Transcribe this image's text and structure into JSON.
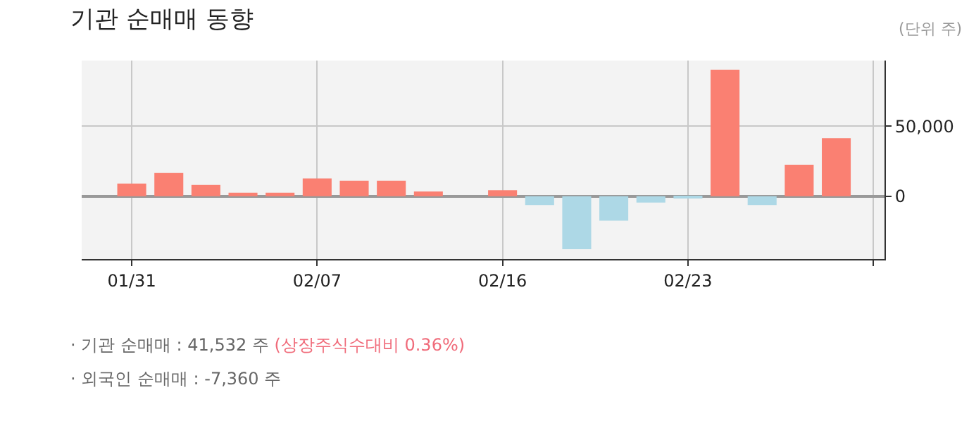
{
  "chart_data": {
    "type": "bar",
    "title": "기관 순매매 동향",
    "subtitle": "(단위 주)",
    "categories": [
      "01/31",
      null,
      null,
      null,
      null,
      "02/07",
      null,
      null,
      null,
      null,
      "02/16",
      null,
      null,
      null,
      null,
      "02/23",
      null,
      null,
      null,
      null,
      null
    ],
    "values": [
      9000,
      16600,
      8000,
      2500,
      2500,
      12700,
      11000,
      11000,
      3400,
      0,
      4200,
      -6300,
      -38000,
      -17500,
      -4600,
      -1700,
      90500,
      -6300,
      22500,
      41532,
      null
    ],
    "colors": [
      "#fa8072",
      "#fa8072",
      "#fa8072",
      "#fa8072",
      "#fa8072",
      "#fa8072",
      "#fa8072",
      "#fa8072",
      "#fa8072",
      "#fa8072",
      "#fa8072",
      "#add8e6",
      "#add8e6",
      "#add8e6",
      "#add8e6",
      "#add8e6",
      "#fa8072",
      "#add8e6",
      "#fa8072",
      "#fa8072",
      "#fa8072"
    ],
    "ylim": [
      -45000,
      97000
    ],
    "yticks": [
      {
        "value": 0,
        "label": "0"
      },
      {
        "value": 50000,
        "label": "50,000"
      }
    ],
    "grid": true,
    "annotations": [
      "· 기관 순매매 : 41,532 주",
      "(상장주식수대비 0.36%)",
      "· 외국인 순매매 : -7,360 주"
    ]
  }
}
